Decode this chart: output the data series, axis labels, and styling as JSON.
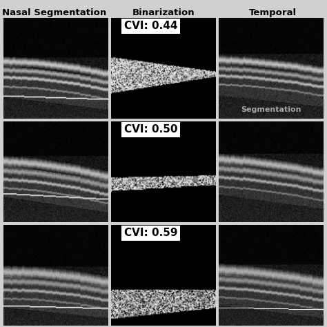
{
  "col_headers": [
    "Nasal Segmentation",
    "Binarization",
    "Temporal"
  ],
  "temporal_sub": "Segmentation",
  "cvi_labels": [
    "CVI: 0.44",
    "CVI: 0.50",
    "CVI: 0.59"
  ],
  "figure_bg": "#d0d0d0",
  "header_fontsize": 9.5,
  "cvi_fontsize": 11,
  "fig_width": 4.74,
  "fig_height": 4.74,
  "dpi": 100
}
